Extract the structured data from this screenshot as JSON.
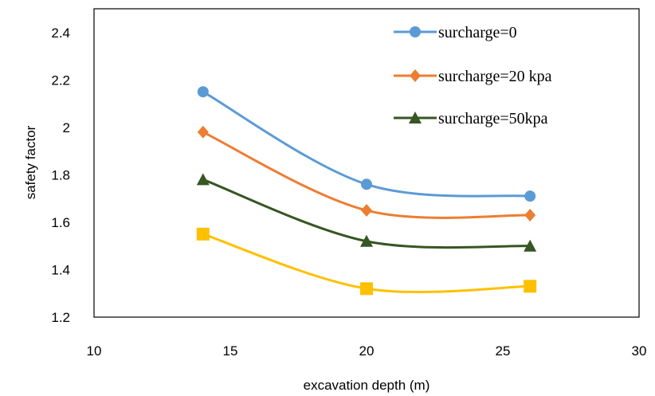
{
  "chart_data": {
    "type": "line",
    "title": "",
    "xlabel": "excavation depth (m)",
    "ylabel": "safety factor",
    "xlim": [
      10,
      30
    ],
    "ylim": [
      1.2,
      2.5
    ],
    "x_ticks": [
      "10",
      "15",
      "20",
      "25",
      "30"
    ],
    "y_ticks": [
      "1.2",
      "1.4",
      "1.6",
      "1.8",
      "2",
      "2.2",
      "2.4"
    ],
    "grid": false,
    "legend_position": "top-right",
    "series": [
      {
        "name": "surcharge=0",
        "color": "#5B9BD5",
        "marker": "circle",
        "x": [
          14,
          20,
          26
        ],
        "y": [
          2.15,
          1.76,
          1.71
        ]
      },
      {
        "name": "surcharge=20 kpa",
        "color": "#ED7D31",
        "marker": "diamond",
        "x": [
          14,
          20,
          26
        ],
        "y": [
          1.98,
          1.65,
          1.63
        ]
      },
      {
        "name": "surcharge=50kpa",
        "color": "#375623",
        "marker": "triangle",
        "x": [
          14,
          20,
          26
        ],
        "y": [
          1.78,
          1.52,
          1.5
        ]
      },
      {
        "name": "",
        "color": "#FFC000",
        "marker": "square",
        "x": [
          14,
          20,
          26
        ],
        "y": [
          1.55,
          1.32,
          1.33
        ]
      }
    ]
  }
}
